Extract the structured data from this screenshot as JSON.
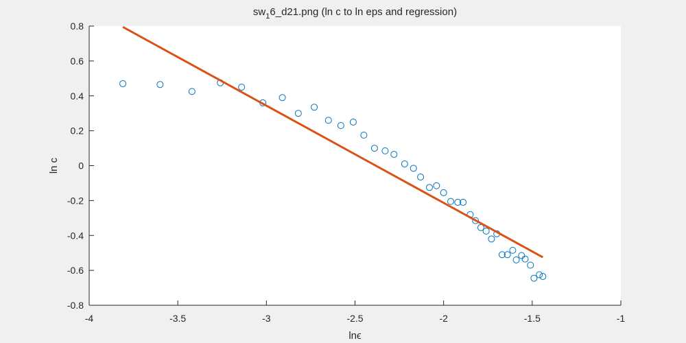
{
  "chart_data": {
    "type": "scatter",
    "title": {
      "prefix": "sw",
      "subscript": "1",
      "suffix": "6_d21.png (ln c to ln eps and regression)"
    },
    "xlabel": "lnϵ",
    "ylabel": "ln c",
    "xlim": [
      -4,
      -1
    ],
    "ylim": [
      -0.8,
      0.8
    ],
    "xticks": [
      -4,
      -3.5,
      -3,
      -2.5,
      -2,
      -1.5,
      -1
    ],
    "xtick_labels": [
      "-4",
      "-3.5",
      "-3",
      "-2.5",
      "-2",
      "-1.5",
      "-1"
    ],
    "yticks": [
      -0.8,
      -0.6,
      -0.4,
      -0.2,
      0,
      0.2,
      0.4,
      0.6,
      0.8
    ],
    "ytick_labels": [
      "-0.8",
      "-0.6",
      "-0.4",
      "-0.2",
      "0",
      "0.2",
      "0.4",
      "0.6",
      "0.8"
    ],
    "grid": false,
    "series": [
      {
        "type": "scatter",
        "marker": "circle-open",
        "color": "#0072bd",
        "points": [
          [
            -3.81,
            0.47
          ],
          [
            -3.6,
            0.465
          ],
          [
            -3.42,
            0.425
          ],
          [
            -3.26,
            0.475
          ],
          [
            -3.14,
            0.45
          ],
          [
            -3.02,
            0.36
          ],
          [
            -2.91,
            0.39
          ],
          [
            -2.82,
            0.3
          ],
          [
            -2.73,
            0.335
          ],
          [
            -2.65,
            0.26
          ],
          [
            -2.58,
            0.23
          ],
          [
            -2.51,
            0.25
          ],
          [
            -2.45,
            0.175
          ],
          [
            -2.39,
            0.1
          ],
          [
            -2.33,
            0.085
          ],
          [
            -2.28,
            0.065
          ],
          [
            -2.22,
            0.01
          ],
          [
            -2.17,
            -0.015
          ],
          [
            -2.13,
            -0.065
          ],
          [
            -2.08,
            -0.125
          ],
          [
            -2.04,
            -0.115
          ],
          [
            -2.0,
            -0.155
          ],
          [
            -1.96,
            -0.205
          ],
          [
            -1.92,
            -0.21
          ],
          [
            -1.89,
            -0.21
          ],
          [
            -1.85,
            -0.28
          ],
          [
            -1.82,
            -0.315
          ],
          [
            -1.79,
            -0.355
          ],
          [
            -1.76,
            -0.375
          ],
          [
            -1.73,
            -0.42
          ],
          [
            -1.7,
            -0.39
          ],
          [
            -1.67,
            -0.51
          ],
          [
            -1.64,
            -0.51
          ],
          [
            -1.61,
            -0.485
          ],
          [
            -1.59,
            -0.54
          ],
          [
            -1.56,
            -0.515
          ],
          [
            -1.54,
            -0.535
          ],
          [
            -1.51,
            -0.57
          ],
          [
            -1.49,
            -0.645
          ],
          [
            -1.46,
            -0.625
          ],
          [
            -1.44,
            -0.635
          ]
        ]
      },
      {
        "type": "line",
        "color": "#d95319",
        "points": [
          [
            -3.81,
            0.795
          ],
          [
            -1.44,
            -0.525
          ]
        ]
      }
    ]
  }
}
